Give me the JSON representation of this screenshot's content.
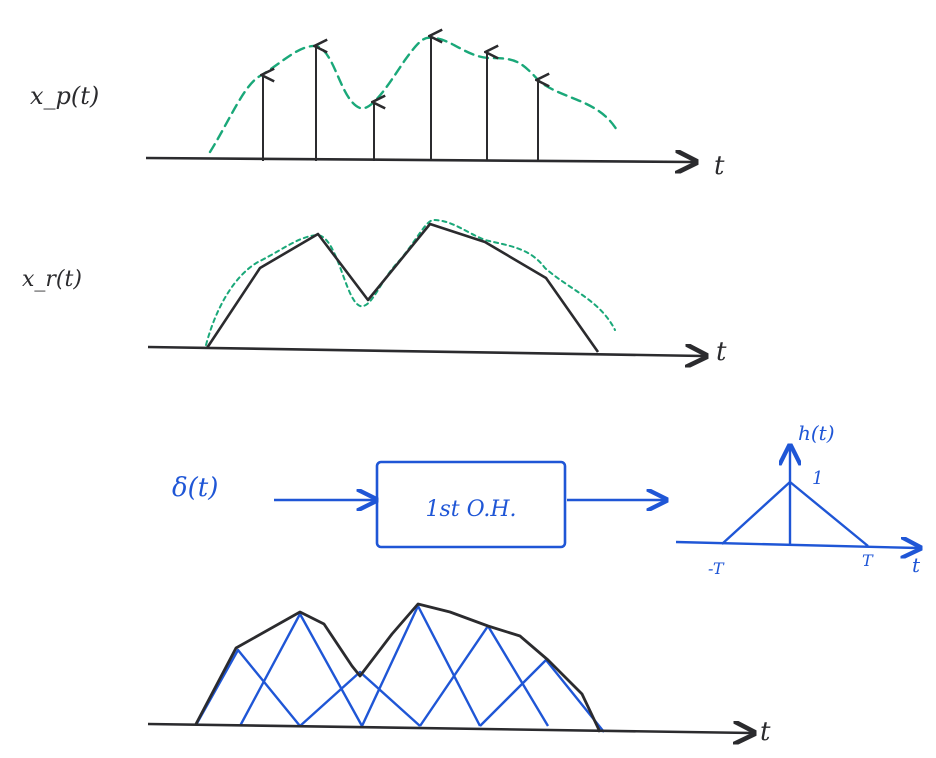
{
  "panels": {
    "sampled": {
      "label": "x_p(t)",
      "axis_label": "t"
    },
    "reconstructed": {
      "label": "x_r(t)",
      "axis_label": "t"
    },
    "system": {
      "input_label": "δ(t)",
      "block_label": "1st O.H.",
      "output_plot": {
        "ylabel": "h(t)",
        "peak_label": "1",
        "tick_left": "-T",
        "tick_right": "T",
        "axis_label": "t"
      }
    },
    "superposition": {
      "axis_label": "t"
    }
  },
  "colors": {
    "black_ink": "#2b2b2e",
    "blue_ink": "#1f56d6",
    "green_dashed": "#1aa879"
  }
}
